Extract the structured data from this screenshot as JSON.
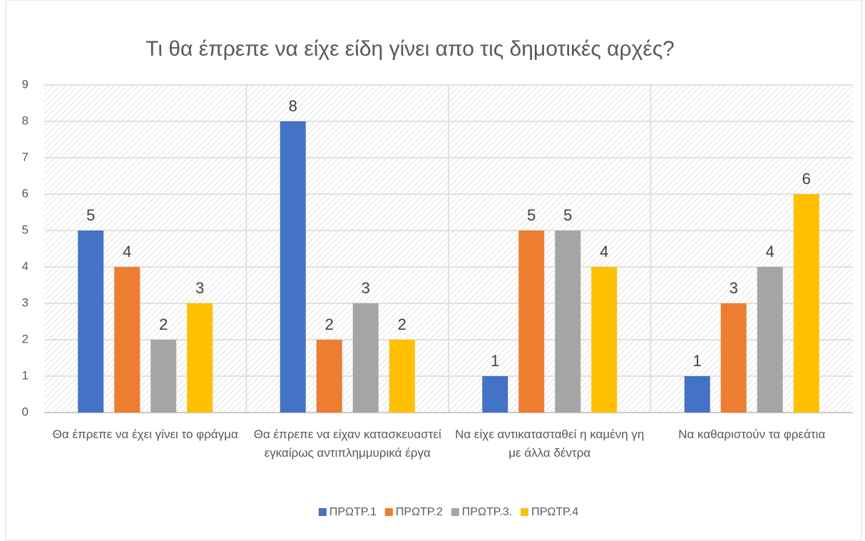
{
  "chart_data": {
    "type": "bar",
    "title": "Τι θα έπρεπε να είχε είδη γίνει απο τις δημοτικές αρχές?",
    "categories": [
      "Θα έπρεπε να έχει γίνει το φράγμα",
      "Θα έπρεπε να είχαν κατασκευαστεί εγκαίρως αντιπλημμυρικά έργα",
      "Να είχε αντικατασταθεί η καμένη γη με άλλα δέντρα",
      "Να καθαριστούν τα φρεάτια"
    ],
    "series": [
      {
        "name": "ΠΡΩΤΡ.1",
        "color": "#4472c4",
        "values": [
          5,
          8,
          1,
          1
        ]
      },
      {
        "name": "ΠΡΩΤΡ.2",
        "color": "#ed7d31",
        "values": [
          4,
          2,
          5,
          3
        ]
      },
      {
        "name": "ΠΡΩΤΡ.3.",
        "color": "#a5a5a5",
        "values": [
          2,
          3,
          5,
          4
        ]
      },
      {
        "name": "ΠΡΩΤΡ.4",
        "color": "#ffc000",
        "values": [
          3,
          2,
          4,
          6
        ]
      }
    ],
    "ylim": [
      0,
      9
    ],
    "yticks": [
      0,
      1,
      2,
      3,
      4,
      5,
      6,
      7,
      8,
      9
    ],
    "grid": true,
    "legend": "bottom"
  }
}
